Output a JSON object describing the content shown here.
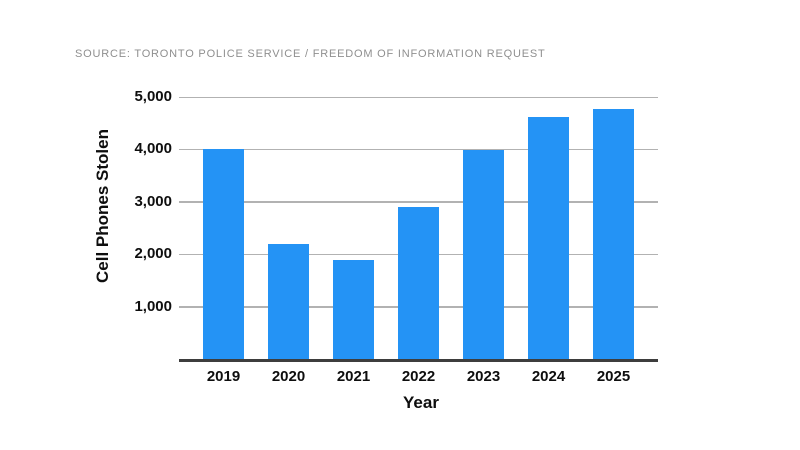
{
  "source_line": "SOURCE: TORONTO POLICE SERVICE / FREEDOM OF INFORMATION REQUEST",
  "colors": {
    "bar": "#2493F5",
    "gridline": "#b2b2b2",
    "axis": "#3d3d3d",
    "source_text": "#8f8f8f",
    "label_text": "#0e0e0e",
    "background": "#ffffff"
  },
  "chart_data": {
    "type": "bar",
    "title": "",
    "categories": [
      "2019",
      "2020",
      "2021",
      "2022",
      "2023",
      "2024",
      "2025"
    ],
    "values": [
      4000,
      2200,
      1890,
      2910,
      3980,
      4620,
      4770
    ],
    "xlabel": "Year",
    "ylabel": "Cell Phones Stolen",
    "ylim": [
      0,
      5000
    ],
    "yticks": [
      1000,
      2000,
      3000,
      4000,
      5000
    ],
    "ytick_labels": [
      "1,000",
      "2,000",
      "3,000",
      "4,000",
      "5,000"
    ],
    "grid": true,
    "legend": false
  }
}
